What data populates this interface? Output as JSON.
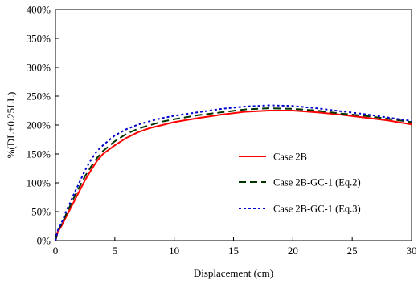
{
  "chart_data": {
    "type": "line",
    "title": "",
    "xlabel": "Displacement  (cm)",
    "ylabel": "%(DL+0.25LL)",
    "xlim": [
      0,
      30
    ],
    "ylim": [
      0,
      400
    ],
    "x_ticks": [
      0,
      5,
      10,
      15,
      20,
      25,
      30
    ],
    "y_ticks": [
      0,
      50,
      100,
      150,
      200,
      250,
      300,
      350,
      400
    ],
    "x_tick_labels": [
      "0",
      "5",
      "10",
      "15",
      "20",
      "25",
      "30"
    ],
    "y_tick_labels": [
      "0%",
      "50%",
      "100%",
      "150%",
      "200%",
      "250%",
      "300%",
      "350%",
      "400%"
    ],
    "grid": false,
    "legend_position": "center-right",
    "series": [
      {
        "name": "Case 2B",
        "color": "#ff0000",
        "dash": "solid",
        "points": [
          [
            0,
            0
          ],
          [
            0.2,
            15
          ],
          [
            0.5,
            25
          ],
          [
            1,
            45
          ],
          [
            1.5,
            65
          ],
          [
            2,
            85
          ],
          [
            2.5,
            105
          ],
          [
            3,
            122
          ],
          [
            3.5,
            138
          ],
          [
            4,
            150
          ],
          [
            5,
            165
          ],
          [
            6,
            178
          ],
          [
            7,
            188
          ],
          [
            8,
            195
          ],
          [
            9,
            200
          ],
          [
            10,
            205
          ],
          [
            12,
            212
          ],
          [
            14,
            218
          ],
          [
            16,
            223
          ],
          [
            18,
            225
          ],
          [
            20,
            225
          ],
          [
            22,
            222
          ],
          [
            24,
            218
          ],
          [
            26,
            213
          ],
          [
            28,
            208
          ],
          [
            30,
            201
          ]
        ]
      },
      {
        "name": "Case 2B-GC-1 (Eq.2)",
        "color": "#003300",
        "dash": "long",
        "points": [
          [
            0,
            0
          ],
          [
            0.2,
            17
          ],
          [
            0.5,
            28
          ],
          [
            1,
            50
          ],
          [
            1.5,
            72
          ],
          [
            2,
            92
          ],
          [
            2.5,
            112
          ],
          [
            3,
            128
          ],
          [
            3.5,
            143
          ],
          [
            4,
            155
          ],
          [
            5,
            172
          ],
          [
            6,
            185
          ],
          [
            7,
            194
          ],
          [
            8,
            200
          ],
          [
            9,
            206
          ],
          [
            10,
            210
          ],
          [
            12,
            217
          ],
          [
            14,
            222
          ],
          [
            16,
            227
          ],
          [
            18,
            229
          ],
          [
            20,
            228
          ],
          [
            22,
            225
          ],
          [
            24,
            220
          ],
          [
            26,
            216
          ],
          [
            28,
            211
          ],
          [
            30,
            205
          ]
        ]
      },
      {
        "name": "Case 2B-GC-1 (Eq.3)",
        "color": "#0000cc",
        "dash": "dotted",
        "points": [
          [
            0,
            0
          ],
          [
            0.2,
            18
          ],
          [
            0.5,
            30
          ],
          [
            1,
            55
          ],
          [
            1.5,
            78
          ],
          [
            2,
            100
          ],
          [
            2.5,
            122
          ],
          [
            3,
            140
          ],
          [
            3.5,
            155
          ],
          [
            4,
            165
          ],
          [
            5,
            182
          ],
          [
            6,
            193
          ],
          [
            7,
            201
          ],
          [
            8,
            207
          ],
          [
            9,
            212
          ],
          [
            10,
            216
          ],
          [
            12,
            222
          ],
          [
            14,
            228
          ],
          [
            16,
            232
          ],
          [
            18,
            234
          ],
          [
            20,
            233
          ],
          [
            22,
            229
          ],
          [
            24,
            224
          ],
          [
            26,
            219
          ],
          [
            28,
            213
          ],
          [
            30,
            207
          ]
        ]
      }
    ]
  }
}
